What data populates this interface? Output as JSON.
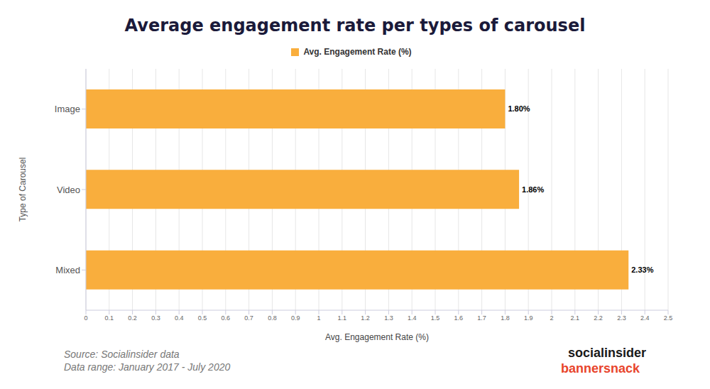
{
  "chart_data": {
    "type": "bar",
    "title": "Average engagement rate per types of carousel",
    "orientation": "horizontal",
    "legend": "top",
    "grid": true,
    "data_labels": true,
    "xlabel": "Avg. Engagement Rate (%)",
    "ylabel": "Type of Carousel",
    "categories": [
      "Image",
      "Video",
      "Mixed"
    ],
    "series": [
      {
        "name": "Avg. Engagement Rate (%)",
        "color": "#f9ae3d",
        "values": [
          1.8,
          1.86,
          2.33
        ],
        "value_labels": [
          "1.80%",
          "1.86%",
          "2.33%"
        ]
      }
    ],
    "xlim": [
      0,
      2.5
    ],
    "xticks": [
      0,
      0.1,
      0.2,
      0.3,
      0.4,
      0.5,
      0.6,
      0.7,
      0.8,
      0.9,
      1,
      1.1,
      1.2,
      1.3,
      1.4,
      1.5,
      1.6,
      1.7,
      1.8,
      1.9,
      2,
      2.1,
      2.2,
      2.3,
      2.4,
      2.5
    ],
    "source": [
      "Source: Socialinsider data",
      "Data range: January 2017 - July 2020"
    ],
    "logos": [
      "socialinsider",
      "bannersnack"
    ]
  }
}
